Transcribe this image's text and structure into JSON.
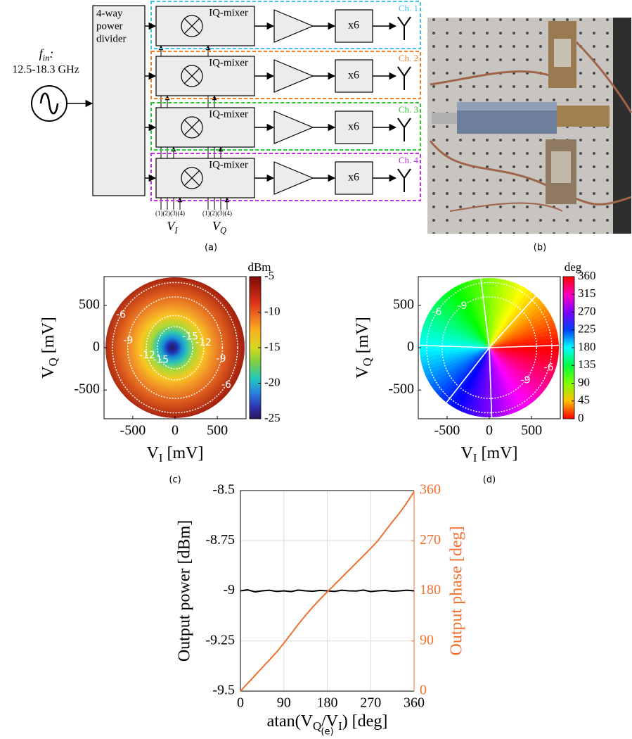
{
  "diagram": {
    "source_label": [
      "f",
      "in",
      ":"
    ],
    "frequency": "12.5-18.3 GHz",
    "divider": [
      "4-way",
      "power",
      "divider"
    ],
    "channels": [
      {
        "mixer": "IQ-mixer",
        "multiplier": "x6",
        "label": "Ch. 1",
        "color": "#3cc4ec"
      },
      {
        "mixer": "IQ-mixer",
        "multiplier": "x6",
        "label": "Ch. 2",
        "color": "#f07f2a"
      },
      {
        "mixer": "IQ-mixer",
        "multiplier": "x6",
        "label": "Ch. 3",
        "color": "#2fc82f"
      },
      {
        "mixer": "IQ-mixer",
        "multiplier": "x6",
        "label": "Ch. 4",
        "color": "#c030e0"
      }
    ],
    "control_ports": [
      "(1)(2)(3)(4)",
      "(1)(2)(3)(4)"
    ],
    "voltages": [
      [
        "V",
        "I"
      ],
      [
        "V",
        "Q"
      ]
    ],
    "caption": "(a)"
  },
  "photo": {
    "caption": "(b)"
  },
  "chart_data": [
    {
      "type": "power-map",
      "colormap": "jet",
      "xlabel": [
        "V",
        "I",
        " [mV]"
      ],
      "ylabel": [
        "V",
        "Q",
        " [mV]"
      ],
      "xlim": [
        -840,
        840
      ],
      "ylim": [
        -840,
        840
      ],
      "xticks": [
        -500,
        0,
        500
      ],
      "yticks": [
        -500,
        0,
        500
      ],
      "colorbar": {
        "label": "dBm",
        "lim": [
          -25,
          -5
        ],
        "ticks": [
          -5,
          -10,
          -15,
          -20,
          -25
        ]
      },
      "contours": [
        {
          "level": -6,
          "rx": 740,
          "ry": 770
        },
        {
          "level": -9,
          "rx": 560,
          "ry": 600
        },
        {
          "level": -12,
          "rx": 340,
          "ry": 380
        },
        {
          "level": -15,
          "rx": 210,
          "ry": 250
        }
      ],
      "caption": "(c)"
    },
    {
      "type": "phase-map",
      "colormap": "hsv",
      "xlabel": [
        "V",
        "I",
        " [mV]"
      ],
      "ylabel": [
        "V",
        "Q",
        " [mV]"
      ],
      "xlim": [
        -840,
        840
      ],
      "ylim": [
        -840,
        840
      ],
      "xticks": [
        -500,
        0,
        500
      ],
      "yticks": [
        -500,
        0,
        500
      ],
      "colorbar": {
        "label": "deg",
        "lim": [
          0,
          360
        ],
        "ticks": [
          360,
          315,
          270,
          225,
          180,
          135,
          90,
          45,
          0
        ]
      },
      "contours": [
        {
          "level": -9,
          "rx": 560,
          "ry": 600
        },
        {
          "level": -6,
          "rx": 740,
          "ry": 770
        }
      ],
      "caption": "(d)"
    },
    {
      "type": "line",
      "xlabel": [
        "atan(V",
        "Q",
        "/V",
        "I",
        ") [deg]"
      ],
      "ylabel": "Output power [dBm]",
      "y2label": "Output phase [deg]",
      "xlim": [
        0,
        360
      ],
      "ylim": [
        -9.5,
        -8.5
      ],
      "y2lim": [
        0,
        360
      ],
      "xticks": [
        0,
        90,
        180,
        270,
        360
      ],
      "yticks": [
        -9.5,
        -9.25,
        -9,
        -8.75,
        -8.5
      ],
      "y2ticks": [
        0,
        90,
        180,
        270,
        360
      ],
      "grid": true,
      "x": [
        0,
        15,
        30,
        45,
        60,
        75,
        90,
        105,
        120,
        135,
        150,
        165,
        180,
        195,
        210,
        225,
        240,
        255,
        270,
        285,
        300,
        315,
        330,
        345,
        360
      ],
      "series": [
        {
          "color": "#000000",
          "values": [
            -9,
            -8.995,
            -9.005,
            -9,
            -8.997,
            -9.003,
            -9,
            -9.004,
            -8.996,
            -9,
            -9.002,
            -8.998,
            -9,
            -9.003,
            -8.997,
            -9,
            -9.001,
            -8.996,
            -9.004,
            -9,
            -8.998,
            -9.002,
            -9,
            -8.997,
            -9
          ]
        },
        {
          "color": "#f07030",
          "axis": "y2",
          "values": [
            0,
            14,
            28,
            42,
            56,
            70,
            86,
            103,
            120,
            136,
            151,
            165,
            178,
            191,
            204,
            217,
            230,
            243,
            256,
            270,
            287,
            304,
            320,
            338,
            358
          ]
        }
      ],
      "caption": "(e)"
    }
  ]
}
